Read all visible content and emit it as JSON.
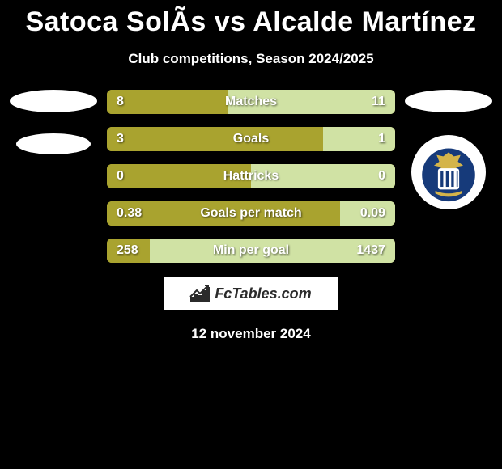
{
  "title": "Satoca SolÃ­s vs Alcalde Martínez",
  "subtitle": "Club competitions, Season 2024/2025",
  "date": "12 november 2024",
  "brand": "FcTables.com",
  "colors": {
    "bg": "#000000",
    "bar_left": "#a9a32f",
    "bar_right": "#d0e2a4",
    "text": "#ffffff",
    "brand_bg": "#ffffff",
    "brand_text": "#2b2b2b"
  },
  "crest": {
    "primary": "#163a7a",
    "accent": "#d4b44a"
  },
  "bar_style": {
    "height": 30,
    "gap": 16,
    "radius": 6,
    "fontsize": 16
  },
  "rows": [
    {
      "label": "Matches",
      "left_val": "8",
      "right_val": "11",
      "left_pct": 42
    },
    {
      "label": "Goals",
      "left_val": "3",
      "right_val": "1",
      "left_pct": 75
    },
    {
      "label": "Hattricks",
      "left_val": "0",
      "right_val": "0",
      "left_pct": 50
    },
    {
      "label": "Goals per match",
      "left_val": "0.38",
      "right_val": "0.09",
      "left_pct": 81
    },
    {
      "label": "Min per goal",
      "left_val": "258",
      "right_val": "1437",
      "left_pct": 15
    }
  ]
}
